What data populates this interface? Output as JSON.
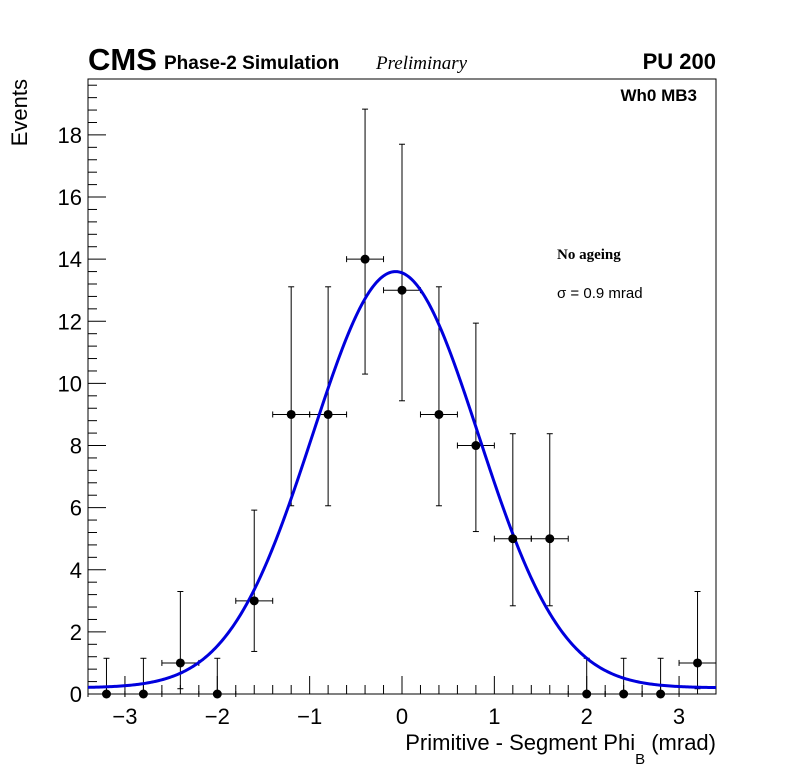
{
  "header": {
    "experiment": "CMS",
    "subtitle": "Phase-2 Simulation",
    "status": "Preliminary",
    "pileup": "PU 200",
    "region": "Wh0 MB3"
  },
  "legend": {
    "condition": "No ageing",
    "sigma_symbol": "σ",
    "sigma_text": " = 0.9 mrad"
  },
  "chart_data": {
    "type": "histogram-with-fit",
    "title": "",
    "xlabel": "Primitive - Segment Phi",
    "xlabel_sub": "B",
    "xlabel_unit": " (mrad)",
    "ylabel": "Events",
    "xlim": [
      -3.4,
      3.4
    ],
    "ylim": [
      0,
      19.8
    ],
    "xticks": [
      -3,
      -2,
      -1,
      0,
      1,
      2,
      3
    ],
    "xtick_labels": [
      "−3",
      "−2",
      "−1",
      "0",
      "1",
      "2",
      "3"
    ],
    "yticks": [
      0,
      2,
      4,
      6,
      8,
      10,
      12,
      14,
      16,
      18
    ],
    "ytick_labels": [
      "0",
      "2",
      "4",
      "6",
      "8",
      "10",
      "12",
      "14",
      "16",
      "18"
    ],
    "bin_half_width": 0.2,
    "points": [
      {
        "x": -3.2,
        "y": 0,
        "err_up": 1.15,
        "err_down": 0
      },
      {
        "x": -2.8,
        "y": 0,
        "err_up": 1.15,
        "err_down": 0
      },
      {
        "x": -2.4,
        "y": 1,
        "err_up": 2.3,
        "err_down": 0.83
      },
      {
        "x": -2.0,
        "y": 0,
        "err_up": 1.15,
        "err_down": 0
      },
      {
        "x": -1.6,
        "y": 3,
        "err_up": 2.92,
        "err_down": 1.63
      },
      {
        "x": -1.2,
        "y": 9,
        "err_up": 4.11,
        "err_down": 2.94
      },
      {
        "x": -0.8,
        "y": 9,
        "err_up": 4.11,
        "err_down": 2.94
      },
      {
        "x": -0.4,
        "y": 14,
        "err_up": 4.83,
        "err_down": 3.7
      },
      {
        "x": 0.0,
        "y": 13,
        "err_up": 4.7,
        "err_down": 3.56
      },
      {
        "x": 0.4,
        "y": 9,
        "err_up": 4.11,
        "err_down": 2.94
      },
      {
        "x": 0.8,
        "y": 8,
        "err_up": 3.94,
        "err_down": 2.77
      },
      {
        "x": 1.2,
        "y": 5,
        "err_up": 3.38,
        "err_down": 2.16
      },
      {
        "x": 1.6,
        "y": 5,
        "err_up": 3.38,
        "err_down": 2.16
      },
      {
        "x": 2.0,
        "y": 0,
        "err_up": 1.15,
        "err_down": 0
      },
      {
        "x": 2.4,
        "y": 0,
        "err_up": 1.15,
        "err_down": 0
      },
      {
        "x": 2.8,
        "y": 0,
        "err_up": 1.15,
        "err_down": 0
      },
      {
        "x": 3.2,
        "y": 1,
        "err_up": 2.3,
        "err_down": 0.83
      }
    ],
    "fit": {
      "function": "gaussian + constant",
      "amplitude": 13.4,
      "mean": -0.07,
      "sigma": 0.9,
      "constant": 0.2,
      "color": "#0000dd"
    },
    "marker_color": "#000000"
  }
}
